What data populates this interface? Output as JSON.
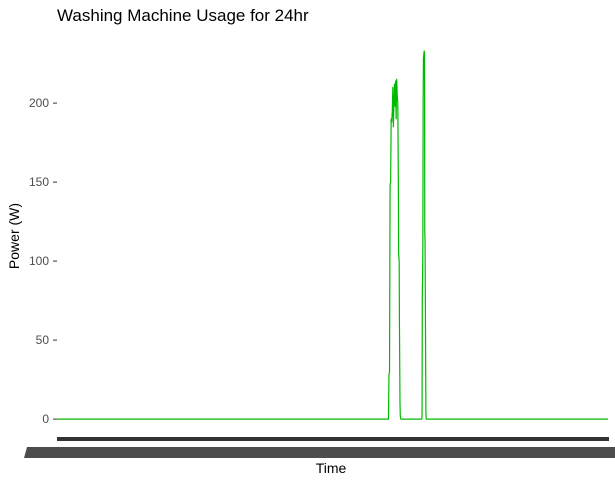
{
  "chart_data": {
    "type": "line",
    "title": "Washing Machine Usage for 24hr",
    "xlabel": "Time",
    "ylabel": "Power (W)",
    "y_ticks": [
      0,
      50,
      100,
      150,
      200
    ],
    "ylim": [
      -5,
      245
    ],
    "x_tick_labels_illegible": true,
    "grid": false,
    "legend": "none",
    "line_color": "#00ba00",
    "series": [
      {
        "x": [
          0,
          0.6015,
          0.6025,
          0.6035,
          0.6045,
          0.6055,
          0.6065,
          0.6075,
          0.6085,
          0.6095,
          0.6105,
          0.6115,
          0.6125,
          0.6135,
          0.6145,
          0.6155,
          0.6165,
          0.6175,
          0.6185,
          0.6195,
          0.62,
          0.621,
          0.6215,
          0.6225,
          0.623,
          0.624,
          0.6245,
          0.625,
          0.662,
          0.6625,
          0.663,
          0.6635,
          0.664,
          0.6645,
          0.665,
          0.666,
          0.6665,
          0.667,
          0.6675,
          0.668,
          0.669,
          0.6695,
          0.67,
          1
        ],
        "values": [
          0,
          0,
          28,
          30,
          148,
          150,
          190,
          188,
          195,
          210,
          185,
          200,
          212,
          198,
          214,
          190,
          215,
          205,
          200,
          150,
          105,
          100,
          60,
          10,
          2,
          0,
          0,
          0,
          0,
          2,
          80,
          90,
          110,
          200,
          228,
          232,
          233,
          230,
          118,
          112,
          40,
          5,
          0,
          0
        ]
      }
    ]
  }
}
